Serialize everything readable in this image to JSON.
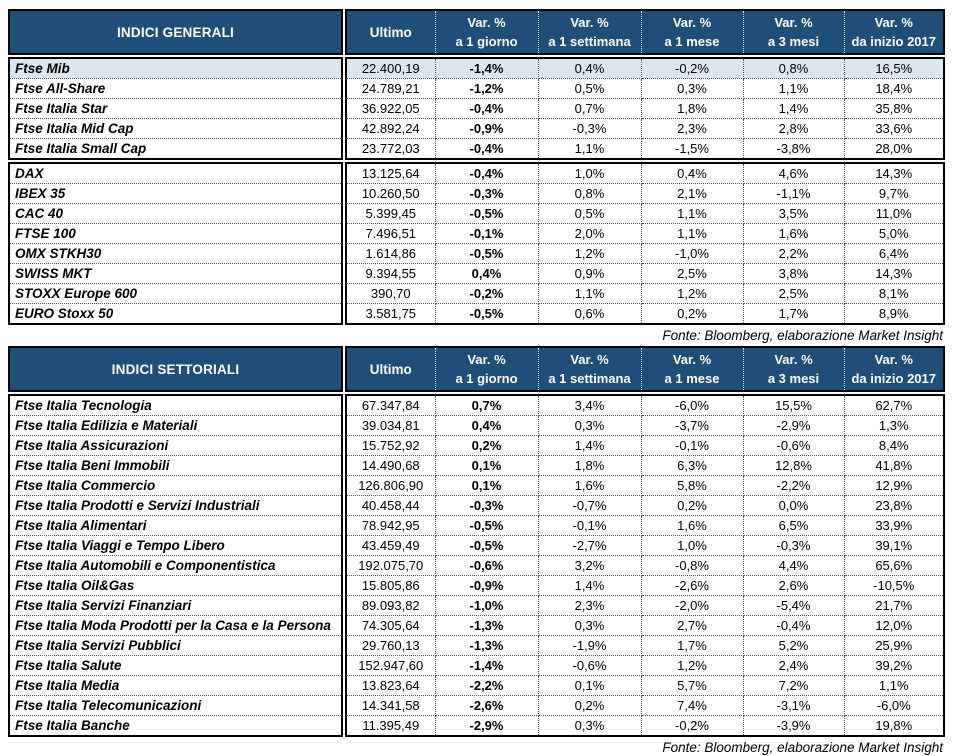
{
  "colors": {
    "header_bg": "#1F4E79",
    "header_text": "#FFFFFF",
    "highlight_row_bg": "#DCE6F1",
    "border": "#000000"
  },
  "col_headers": {
    "ultimo": "Ultimo",
    "vars": [
      {
        "l1": "Var. %",
        "l2": "a 1 giorno"
      },
      {
        "l1": "Var. %",
        "l2": "a 1 settimana"
      },
      {
        "l1": "Var. %",
        "l2": "a 1 mese"
      },
      {
        "l1": "Var. %",
        "l2": "a 3 mesi"
      },
      {
        "l1": "Var. %",
        "l2": "da inizio 2017"
      }
    ]
  },
  "tables": [
    {
      "title": "INDICI GENERALI",
      "fonte": "Fonte: Bloomberg, elaborazione Market Insight",
      "sections": [
        {
          "rows": [
            {
              "name": "Ftse Mib",
              "ultimo": "22.400,19",
              "vars": [
                "-1,4%",
                "0,4%",
                "-0,2%",
                "0,8%",
                "16,5%"
              ],
              "highlight": true
            },
            {
              "name": "Ftse All-Share",
              "ultimo": "24.789,21",
              "vars": [
                "-1,2%",
                "0,5%",
                "0,3%",
                "1,1%",
                "18,4%"
              ]
            },
            {
              "name": "Ftse Italia Star",
              "ultimo": "36.922,05",
              "vars": [
                "-0,4%",
                "0,7%",
                "1,8%",
                "1,4%",
                "35,8%"
              ]
            },
            {
              "name": "Ftse Italia Mid Cap",
              "ultimo": "42.892,24",
              "vars": [
                "-0,9%",
                "-0,3%",
                "2,3%",
                "2,8%",
                "33,6%"
              ]
            },
            {
              "name": "Ftse Italia Small Cap",
              "ultimo": "23.772,03",
              "vars": [
                "-0,4%",
                "1,1%",
                "-1,5%",
                "-3,8%",
                "28,0%"
              ]
            }
          ]
        },
        {
          "rows": [
            {
              "name": "DAX",
              "ultimo": "13.125,64",
              "vars": [
                "-0,4%",
                "1,0%",
                "0,4%",
                "4,6%",
                "14,3%"
              ]
            },
            {
              "name": "IBEX 35",
              "ultimo": "10.260,50",
              "vars": [
                "-0,3%",
                "0,8%",
                "2,1%",
                "-1,1%",
                "9,7%"
              ]
            },
            {
              "name": "CAC 40",
              "ultimo": "5.399,45",
              "vars": [
                "-0,5%",
                "0,5%",
                "1,1%",
                "3,5%",
                "11,0%"
              ]
            },
            {
              "name": "FTSE 100",
              "ultimo": "7.496,51",
              "vars": [
                "-0,1%",
                "2,0%",
                "1,1%",
                "1,6%",
                "5,0%"
              ]
            },
            {
              "name": "OMX STKH30",
              "ultimo": "1.614,86",
              "vars": [
                "-0,5%",
                "1,2%",
                "-1,0%",
                "2,2%",
                "6,4%"
              ]
            },
            {
              "name": "SWISS MKT",
              "ultimo": "9.394,55",
              "vars": [
                "0,4%",
                "0,9%",
                "2,5%",
                "3,8%",
                "14,3%"
              ]
            },
            {
              "name": "STOXX Europe 600",
              "ultimo": "390,70",
              "vars": [
                "-0,2%",
                "1,1%",
                "1,2%",
                "2,5%",
                "8,1%"
              ]
            },
            {
              "name": "EURO Stoxx 50",
              "ultimo": "3.581,75",
              "vars": [
                "-0,5%",
                "0,6%",
                "0,2%",
                "1,7%",
                "8,9%"
              ]
            }
          ]
        }
      ]
    },
    {
      "title": "INDICI SETTORIALI",
      "fonte": "Fonte: Bloomberg, elaborazione Market Insight",
      "sections": [
        {
          "rows": [
            {
              "name": "Ftse Italia Tecnologia",
              "ultimo": "67.347,84",
              "vars": [
                "0,7%",
                "3,4%",
                "-6,0%",
                "15,5%",
                "62,7%"
              ]
            },
            {
              "name": "Ftse Italia Edilizia e Materiali",
              "ultimo": "39.034,81",
              "vars": [
                "0,4%",
                "0,3%",
                "-3,7%",
                "-2,9%",
                "1,3%"
              ]
            },
            {
              "name": "Ftse Italia Assicurazioni",
              "ultimo": "15.752,92",
              "vars": [
                "0,2%",
                "1,4%",
                "-0,1%",
                "-0,6%",
                "8,4%"
              ]
            },
            {
              "name": "Ftse Italia Beni Immobili",
              "ultimo": "14.490,68",
              "vars": [
                "0,1%",
                "1,8%",
                "6,3%",
                "12,8%",
                "41,8%"
              ]
            },
            {
              "name": "Ftse Italia Commercio",
              "ultimo": "126.806,90",
              "vars": [
                "0,1%",
                "1,6%",
                "5,8%",
                "-2,2%",
                "12,9%"
              ]
            },
            {
              "name": "Ftse Italia Prodotti e Servizi Industriali",
              "ultimo": "40.458,44",
              "vars": [
                "-0,3%",
                "-0,7%",
                "0,2%",
                "0,0%",
                "23,8%"
              ]
            },
            {
              "name": "Ftse Italia Alimentari",
              "ultimo": "78.942,95",
              "vars": [
                "-0,5%",
                "-0,1%",
                "1,6%",
                "6,5%",
                "33,9%"
              ]
            },
            {
              "name": "Ftse Italia Viaggi e Tempo Libero",
              "ultimo": "43.459,49",
              "vars": [
                "-0,5%",
                "-2,7%",
                "1,0%",
                "-0,3%",
                "39,1%"
              ]
            },
            {
              "name": "Ftse Italia Automobili e Componentistica",
              "ultimo": "192.075,70",
              "vars": [
                "-0,6%",
                "3,2%",
                "-0,8%",
                "4,4%",
                "65,6%"
              ]
            },
            {
              "name": "Ftse Italia Oil&Gas",
              "ultimo": "15.805,86",
              "vars": [
                "-0,9%",
                "1,4%",
                "-2,6%",
                "2,6%",
                "-10,5%"
              ]
            },
            {
              "name": "Ftse Italia Servizi Finanziari",
              "ultimo": "89.093,82",
              "vars": [
                "-1,0%",
                "2,3%",
                "-2,0%",
                "-5,4%",
                "21,7%"
              ]
            },
            {
              "name": "Ftse Italia Moda Prodotti per la Casa e la Persona",
              "ultimo": "74.305,64",
              "vars": [
                "-1,3%",
                "0,3%",
                "2,7%",
                "-0,4%",
                "12,0%"
              ]
            },
            {
              "name": "Ftse Italia Servizi Pubblici",
              "ultimo": "29.760,13",
              "vars": [
                "-1,3%",
                "-1,9%",
                "1,7%",
                "5,2%",
                "25,9%"
              ]
            },
            {
              "name": "Ftse Italia Salute",
              "ultimo": "152.947,60",
              "vars": [
                "-1,4%",
                "-0,6%",
                "1,2%",
                "2,4%",
                "39,2%"
              ]
            },
            {
              "name": "Ftse Italia Media",
              "ultimo": "13.823,64",
              "vars": [
                "-2,2%",
                "0,1%",
                "5,7%",
                "7,2%",
                "1,1%"
              ]
            },
            {
              "name": "Ftse Italia Telecomunicazioni",
              "ultimo": "14.341,58",
              "vars": [
                "-2,6%",
                "0,2%",
                "7,4%",
                "-3,1%",
                "-6,0%"
              ]
            },
            {
              "name": "Ftse Italia Banche",
              "ultimo": "11.395,49",
              "vars": [
                "-2,9%",
                "0,3%",
                "-0,2%",
                "-3,9%",
                "19,8%"
              ]
            }
          ]
        }
      ]
    }
  ]
}
